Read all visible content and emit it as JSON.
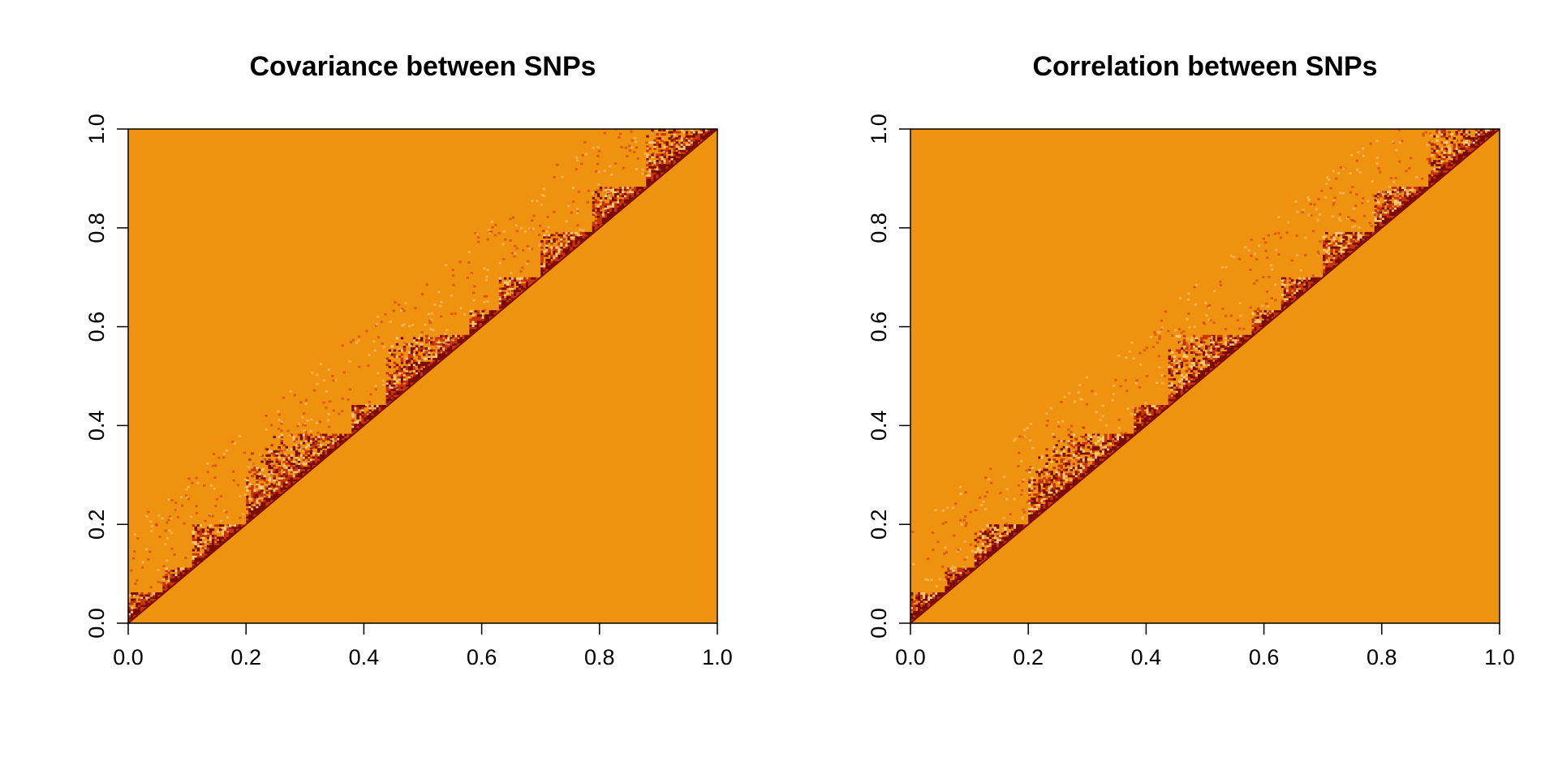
{
  "chart_data": [
    {
      "type": "heatmap",
      "title": "Covariance between SNPs",
      "xlabel": "",
      "ylabel": "",
      "xlim": [
        0,
        1
      ],
      "ylim": [
        0,
        1
      ],
      "x_ticks": [
        "0.0",
        "0.2",
        "0.4",
        "0.6",
        "0.8",
        "1.0"
      ],
      "y_ticks": [
        "0.0",
        "0.2",
        "0.4",
        "0.6",
        "0.8",
        "1.0"
      ],
      "grid": false,
      "structure": "upper-left triangle shows block structure along the diagonal; lower-right triangle uniform",
      "blocks": [
        [
          0.0,
          0.06
        ],
        [
          0.06,
          0.11
        ],
        [
          0.11,
          0.2
        ],
        [
          0.2,
          0.38
        ],
        [
          0.38,
          0.44
        ],
        [
          0.44,
          0.58
        ],
        [
          0.58,
          0.63
        ],
        [
          0.63,
          0.7
        ],
        [
          0.7,
          0.79
        ],
        [
          0.79,
          0.88
        ],
        [
          0.88,
          1.0
        ]
      ],
      "colors": {
        "background": "#ef9210",
        "strong": "#7a0b06",
        "medium": "#c8350c",
        "light": "#f7c873"
      }
    },
    {
      "type": "heatmap",
      "title": "Correlation between SNPs",
      "xlabel": "",
      "ylabel": "",
      "xlim": [
        0,
        1
      ],
      "ylim": [
        0,
        1
      ],
      "x_ticks": [
        "0.0",
        "0.2",
        "0.4",
        "0.6",
        "0.8",
        "1.0"
      ],
      "y_ticks": [
        "0.0",
        "0.2",
        "0.4",
        "0.6",
        "0.8",
        "1.0"
      ],
      "grid": false,
      "structure": "upper-left triangle shows block structure along the diagonal; lower-right triangle uniform",
      "blocks": [
        [
          0.0,
          0.06
        ],
        [
          0.06,
          0.11
        ],
        [
          0.11,
          0.2
        ],
        [
          0.2,
          0.38
        ],
        [
          0.38,
          0.44
        ],
        [
          0.44,
          0.58
        ],
        [
          0.58,
          0.63
        ],
        [
          0.63,
          0.7
        ],
        [
          0.7,
          0.79
        ],
        [
          0.79,
          0.88
        ],
        [
          0.88,
          1.0
        ]
      ],
      "colors": {
        "background": "#ef9210",
        "strong": "#7a0b06",
        "medium": "#c8350c",
        "light": "#f7c873"
      }
    }
  ]
}
